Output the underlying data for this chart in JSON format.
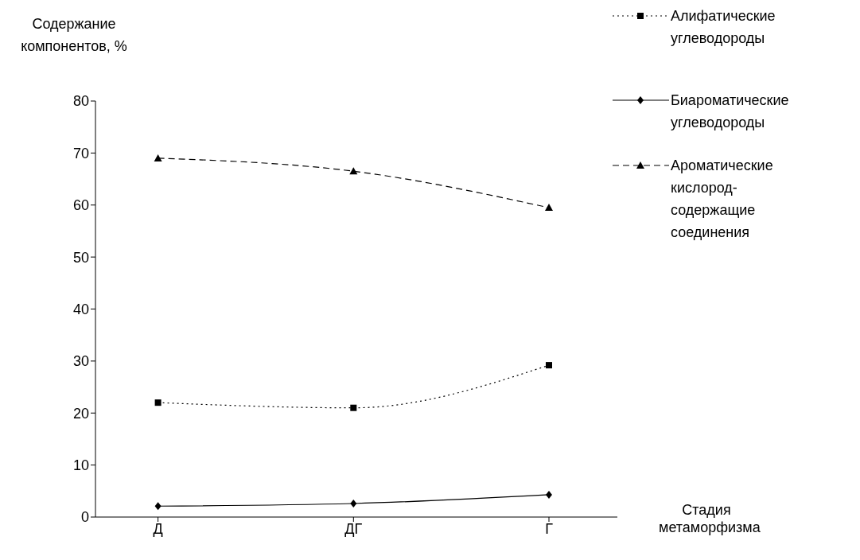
{
  "chart_data": {
    "type": "line",
    "ylabel": "Содержание компонентов, %",
    "xlabel": "Стадия метаморфизма",
    "categories": [
      "Д",
      "ДГ",
      "Г"
    ],
    "ylim": [
      0,
      80
    ],
    "yticks": [
      0,
      10,
      20,
      30,
      40,
      50,
      60,
      70,
      80
    ],
    "legend": "right",
    "series": [
      {
        "name": "Алифатические углеводороды",
        "color": "#000000",
        "values": [
          22,
          21,
          29.2
        ],
        "marker": "square",
        "line_style": "dotted"
      },
      {
        "name": "Биароматические углеводороды",
        "color": "#000000",
        "values": [
          2.1,
          2.6,
          4.3
        ],
        "marker": "diamond",
        "line_style": "solid"
      },
      {
        "name": "Ароматические кислород-содержащие соединения",
        "color": "#000000",
        "values": [
          69,
          66.5,
          59.5
        ],
        "marker": "triangle",
        "line_style": "dashed"
      }
    ]
  }
}
